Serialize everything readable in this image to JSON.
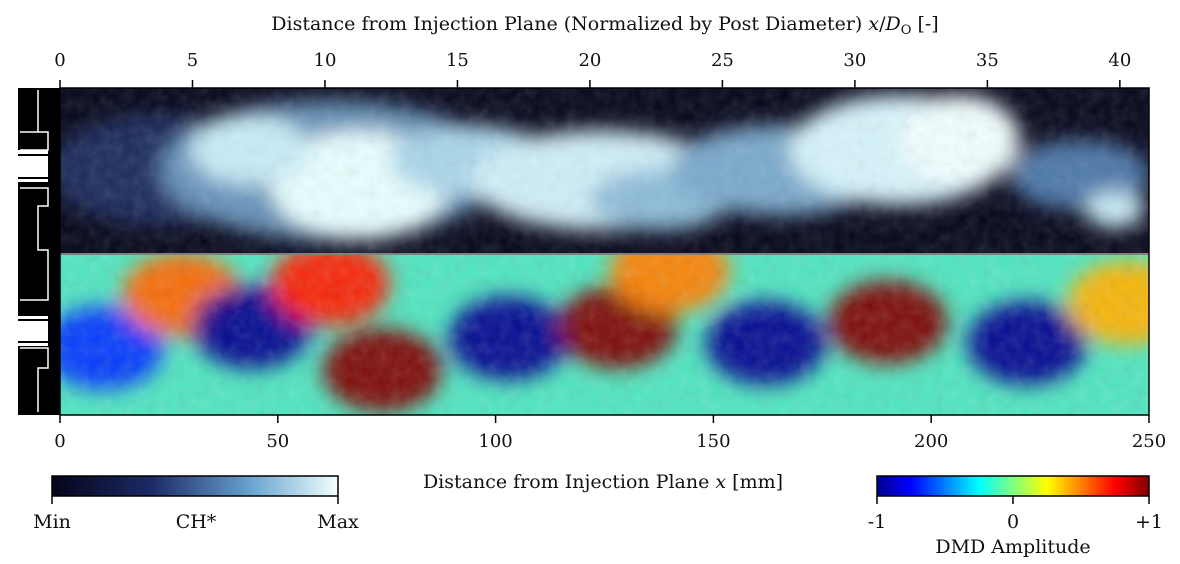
{
  "chart_data": [
    {
      "type": "heatmap",
      "panel": "top",
      "title": "",
      "xlabel_top": "Distance from Injection Plane (Normalized by Post Diameter) x/D_O [-]",
      "xlabel_top_parts": {
        "text": "Distance from Injection Plane (Normalized by Post Diameter) ",
        "var_x": "x",
        "slash": "/",
        "var_D": "D",
        "sub": "O",
        "unit": " [-]"
      },
      "x_top_ticks": [
        0,
        5,
        10,
        15,
        20,
        25,
        30,
        35,
        40
      ],
      "x_top_range": [
        0,
        41.1
      ],
      "colormap": "bone (dark navy → white)",
      "colorbar": {
        "min_label": "Min",
        "label": "CH*",
        "max_label": "Max"
      },
      "description_values": {
        "bright_regions_mm": [
          [
            30,
            85
          ],
          [
            110,
            145
          ],
          [
            195,
            215
          ],
          [
            235,
            245
          ]
        ]
      }
    },
    {
      "type": "heatmap",
      "panel": "bottom",
      "title": "",
      "xlabel_bottom": "Distance from Injection Plane x [mm]",
      "xlabel_bottom_parts": {
        "text": "Distance from Injection Plane ",
        "var": "x",
        "unit": " [mm]"
      },
      "x_bottom_ticks": [
        0,
        50,
        100,
        150,
        200,
        250
      ],
      "x_bottom_range": [
        0,
        250
      ],
      "colormap": "jet",
      "colorbar": {
        "ticks": [
          "-1",
          "0",
          "+1"
        ],
        "label": "DMD Amplitude",
        "range": [
          -1,
          1
        ]
      },
      "blobs_mm_amplitude": [
        {
          "x": 10,
          "y": 0.58,
          "amp": -0.65
        },
        {
          "x": 28,
          "y": 0.25,
          "amp": 0.55
        },
        {
          "x": 44,
          "y": 0.45,
          "amp": -1.0
        },
        {
          "x": 74,
          "y": 0.72,
          "amp": 1.0
        },
        {
          "x": 62,
          "y": 0.18,
          "amp": 0.7
        },
        {
          "x": 103,
          "y": 0.52,
          "amp": -1.0
        },
        {
          "x": 128,
          "y": 0.45,
          "amp": 1.0
        },
        {
          "x": 140,
          "y": 0.1,
          "amp": 0.5
        },
        {
          "x": 162,
          "y": 0.55,
          "amp": -1.0
        },
        {
          "x": 190,
          "y": 0.42,
          "amp": 1.0
        },
        {
          "x": 222,
          "y": 0.55,
          "amp": -1.0
        },
        {
          "x": 245,
          "y": 0.3,
          "amp": 0.4
        }
      ]
    }
  ]
}
